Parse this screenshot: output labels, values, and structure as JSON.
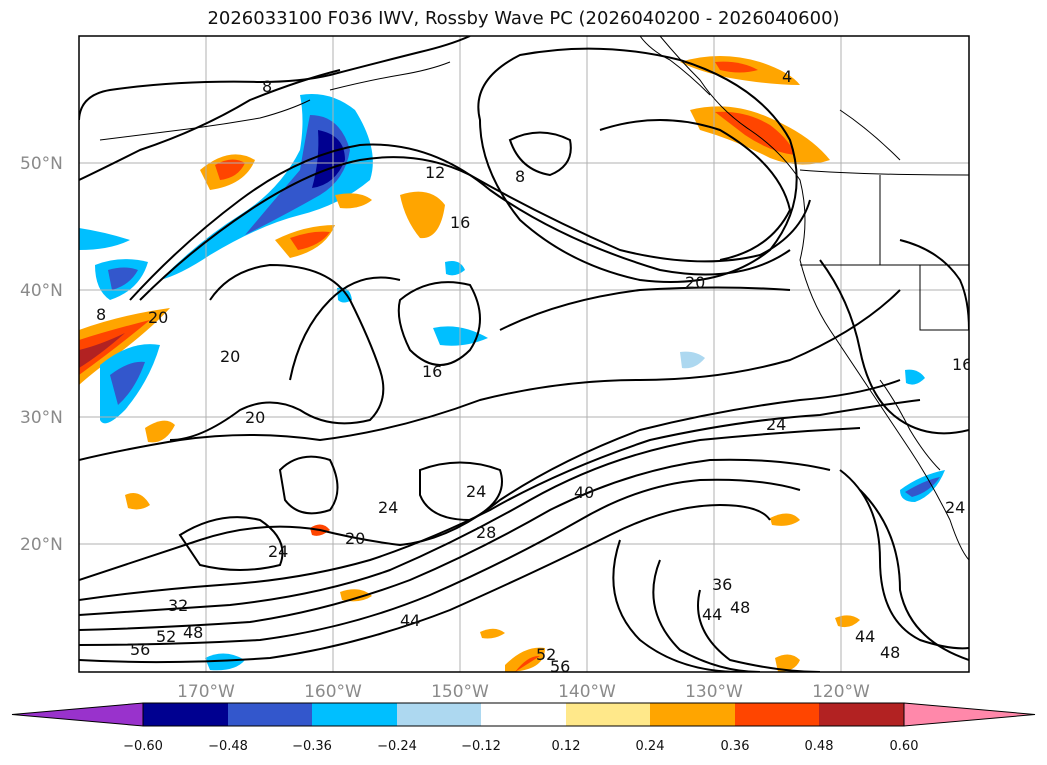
{
  "title": "2026033100 F036 IWV, Rossby Wave PC (2026040200 - 2026040600)",
  "lat_labels": [
    "50°N",
    "40°N",
    "30°N",
    "20°N"
  ],
  "lon_labels": [
    "170°W",
    "160°W",
    "150°W",
    "140°W",
    "130°W",
    "120°W"
  ],
  "contour_labels": [
    "8",
    "12",
    "16",
    "20",
    "16",
    "20",
    "20",
    "20",
    "24",
    "24",
    "24",
    "20",
    "28",
    "40",
    "24",
    "32",
    "52",
    "48",
    "56",
    "44",
    "36",
    "44",
    "48",
    "44",
    "48",
    "52",
    "56",
    "16",
    "8",
    "8",
    "4",
    "24"
  ],
  "colorbar": {
    "ticks": [
      "−0.60",
      "−0.48",
      "−0.36",
      "−0.24",
      "−0.12",
      "0.12",
      "0.24",
      "0.36",
      "0.48",
      "0.60"
    ],
    "colors": [
      "#9932cc",
      "#000090",
      "#3357cc",
      "#00bfff",
      "#add8f0",
      "#ffffff",
      "#ffe88a",
      "#ffa500",
      "#ff4500",
      "#b22222",
      "#ff88aa"
    ]
  }
}
